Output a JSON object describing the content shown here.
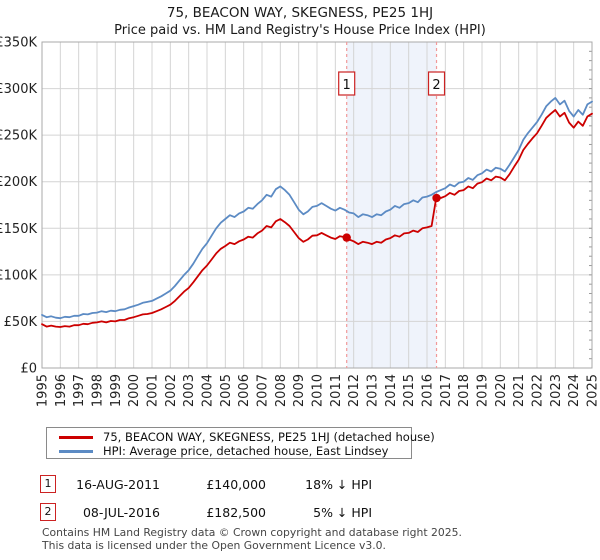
{
  "header": {
    "title": "75, BEACON WAY, SKEGNESS, PE25 1HJ",
    "subtitle": "Price paid vs. HM Land Registry's House Price Index (HPI)"
  },
  "colors": {
    "red": "#cc0000",
    "blue": "#5c8bc4",
    "dashed_line": "#f19999",
    "shade": "#eff3fb",
    "grid": "#d4d4d4",
    "plot_border": "#a9a9a9",
    "marker_border": "#cc2222",
    "axis_text": "#222222"
  },
  "chart_data": {
    "type": "line",
    "title": "75, BEACON WAY, SKEGNESS, PE25 1HJ",
    "subtitle": "Price paid vs. HM Land Registry's House Price Index (HPI)",
    "x_range": [
      1995,
      2025
    ],
    "y_range": [
      0,
      350000
    ],
    "grid": true,
    "legend_position": "bottom",
    "x_ticks": [
      1995,
      1996,
      1997,
      1998,
      1999,
      2000,
      2001,
      2002,
      2003,
      2004,
      2005,
      2006,
      2007,
      2008,
      2009,
      2010,
      2011,
      2012,
      2013,
      2014,
      2015,
      2016,
      2017,
      2018,
      2019,
      2020,
      2021,
      2022,
      2023,
      2024,
      2025
    ],
    "y_ticks": [
      {
        "value": 0,
        "label": "£0"
      },
      {
        "value": 50000,
        "label": "£50K"
      },
      {
        "value": 100000,
        "label": "£100K"
      },
      {
        "value": 150000,
        "label": "£150K"
      },
      {
        "value": 200000,
        "label": "£200K"
      },
      {
        "value": 250000,
        "label": "£250K"
      },
      {
        "value": 300000,
        "label": "£300K"
      },
      {
        "value": 350000,
        "label": "£350K"
      }
    ],
    "x_start": 1995,
    "x_step_years": 0.25,
    "values_unit": "GBP_thousands",
    "series": [
      {
        "name": "75, BEACON WAY, SKEGNESS, PE25 1HJ (detached house)",
        "color": "#cc0000",
        "values_gbp_k": [
          47,
          44.5,
          45.5,
          44.5,
          44,
          45,
          44.5,
          46,
          46,
          47.5,
          47,
          48.5,
          49,
          50,
          49,
          50.5,
          50,
          51.5,
          51.5,
          53.5,
          54.5,
          56,
          57.5,
          58,
          59,
          61,
          63,
          65.5,
          68,
          72,
          77,
          82,
          86,
          92,
          98.5,
          105,
          110,
          116.5,
          123,
          128,
          131,
          134.5,
          133,
          136,
          138,
          141,
          140,
          144.5,
          147.5,
          152.5,
          151,
          157.5,
          160,
          156.5,
          152.5,
          146,
          139.5,
          135.5,
          138,
          142,
          142.5,
          145,
          142.5,
          140,
          138.5,
          141.5,
          140.5,
          138,
          136,
          133,
          135.5,
          134.5,
          133,
          135.5,
          134.5,
          138,
          139.5,
          142.5,
          141,
          144.5,
          145,
          147.5,
          146,
          150,
          151,
          152.5,
          182.5,
          182.5,
          184.5,
          188,
          186,
          190,
          191,
          195,
          193,
          198,
          199.5,
          203.5,
          201.5,
          205.5,
          204.5,
          201.5,
          208,
          216,
          223.5,
          234,
          240.5,
          246.5,
          252,
          260,
          268.5,
          273,
          277,
          270,
          274,
          263.5,
          258,
          264.5,
          260,
          270,
          273
        ]
      },
      {
        "name": "HPI: Average price, detached house, East Lindsey",
        "color": "#5c8bc4",
        "values_gbp_k": [
          57,
          54.5,
          55.5,
          54,
          53.5,
          55,
          54.5,
          56,
          56,
          58,
          57.5,
          59,
          59.5,
          61,
          60,
          61.5,
          61,
          62.5,
          63,
          65,
          66.5,
          68,
          70,
          71,
          72,
          74.5,
          77,
          80,
          83,
          88,
          94,
          100,
          105,
          112,
          120,
          128,
          134,
          142,
          150,
          156,
          160,
          164,
          162,
          166,
          168,
          172,
          171,
          176,
          180,
          186,
          184,
          192,
          195,
          191,
          186,
          178,
          170,
          165,
          168,
          173,
          174,
          177,
          174,
          171,
          169,
          172,
          170,
          167,
          166,
          162,
          165,
          164,
          162,
          165,
          164,
          168,
          170,
          174,
          172,
          176,
          177,
          180,
          178,
          183,
          184,
          186,
          189,
          191,
          193,
          197,
          195,
          199,
          200,
          204,
          202,
          207,
          209,
          213,
          211,
          215,
          214,
          211,
          218,
          226,
          234,
          245,
          252,
          258,
          264,
          272,
          281,
          286,
          290,
          283,
          287,
          276,
          270,
          277,
          272,
          283,
          286
        ]
      }
    ],
    "sales": [
      {
        "label": "1",
        "date": "16-AUG-2011",
        "year_decimal": 2011.62,
        "price": 140000,
        "price_text": "£140,000",
        "vs_hpi": "18% ↓ HPI"
      },
      {
        "label": "2",
        "date": "08-JUL-2016",
        "year_decimal": 2016.52,
        "price": 182500,
        "price_text": "£182,500",
        "vs_hpi": "5% ↓ HPI"
      }
    ],
    "shaded_region_years": [
      2011.62,
      2016.52
    ]
  },
  "footer": {
    "line1": "Contains HM Land Registry data © Crown copyright and database right 2025.",
    "line2": "This data is licensed under the Open Government Licence v3.0."
  }
}
